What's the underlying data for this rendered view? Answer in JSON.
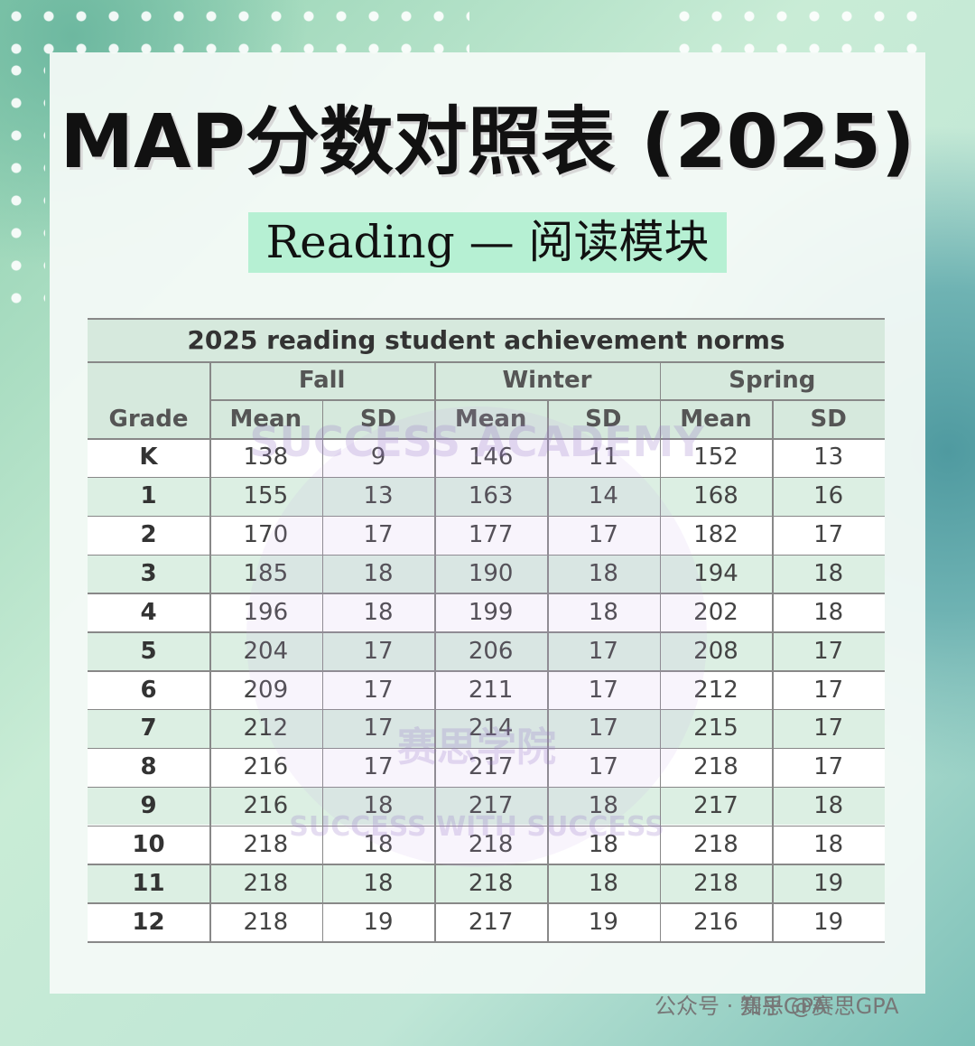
{
  "header": {
    "title": "MAP分数对照表 (2025)",
    "subtitle": "Reading — 阅读模块"
  },
  "table": {
    "title": "2025 reading student achievement norms",
    "groups": [
      "Fall",
      "Winter",
      "Spring"
    ],
    "columns": [
      "Grade",
      "Mean",
      "SD",
      "Mean",
      "SD",
      "Mean",
      "SD"
    ],
    "rows": [
      [
        "K",
        138,
        9,
        146,
        11,
        152,
        13
      ],
      [
        1,
        155,
        13,
        163,
        14,
        168,
        16
      ],
      [
        2,
        170,
        17,
        177,
        17,
        182,
        17
      ],
      [
        3,
        185,
        18,
        190,
        18,
        194,
        18
      ],
      [
        4,
        196,
        18,
        199,
        18,
        202,
        18
      ],
      [
        5,
        204,
        17,
        206,
        17,
        208,
        17
      ],
      [
        6,
        209,
        17,
        211,
        17,
        212,
        17
      ],
      [
        7,
        212,
        17,
        214,
        17,
        215,
        17
      ],
      [
        8,
        216,
        17,
        217,
        17,
        218,
        17
      ],
      [
        9,
        216,
        18,
        217,
        18,
        217,
        18
      ],
      [
        10,
        218,
        18,
        218,
        18,
        218,
        18
      ],
      [
        11,
        218,
        18,
        218,
        18,
        218,
        19
      ],
      [
        12,
        218,
        19,
        217,
        19,
        216,
        19
      ]
    ]
  },
  "watermark": {
    "ring_top": "SUCCESS ACADEMY",
    "center": "赛思学院",
    "ring_bottom": "SUCCESS WITH SUCCESS"
  },
  "footer": {
    "wechat": "公众号 · 赛思GPA",
    "zhihu": "知乎 @赛思GPA"
  }
}
